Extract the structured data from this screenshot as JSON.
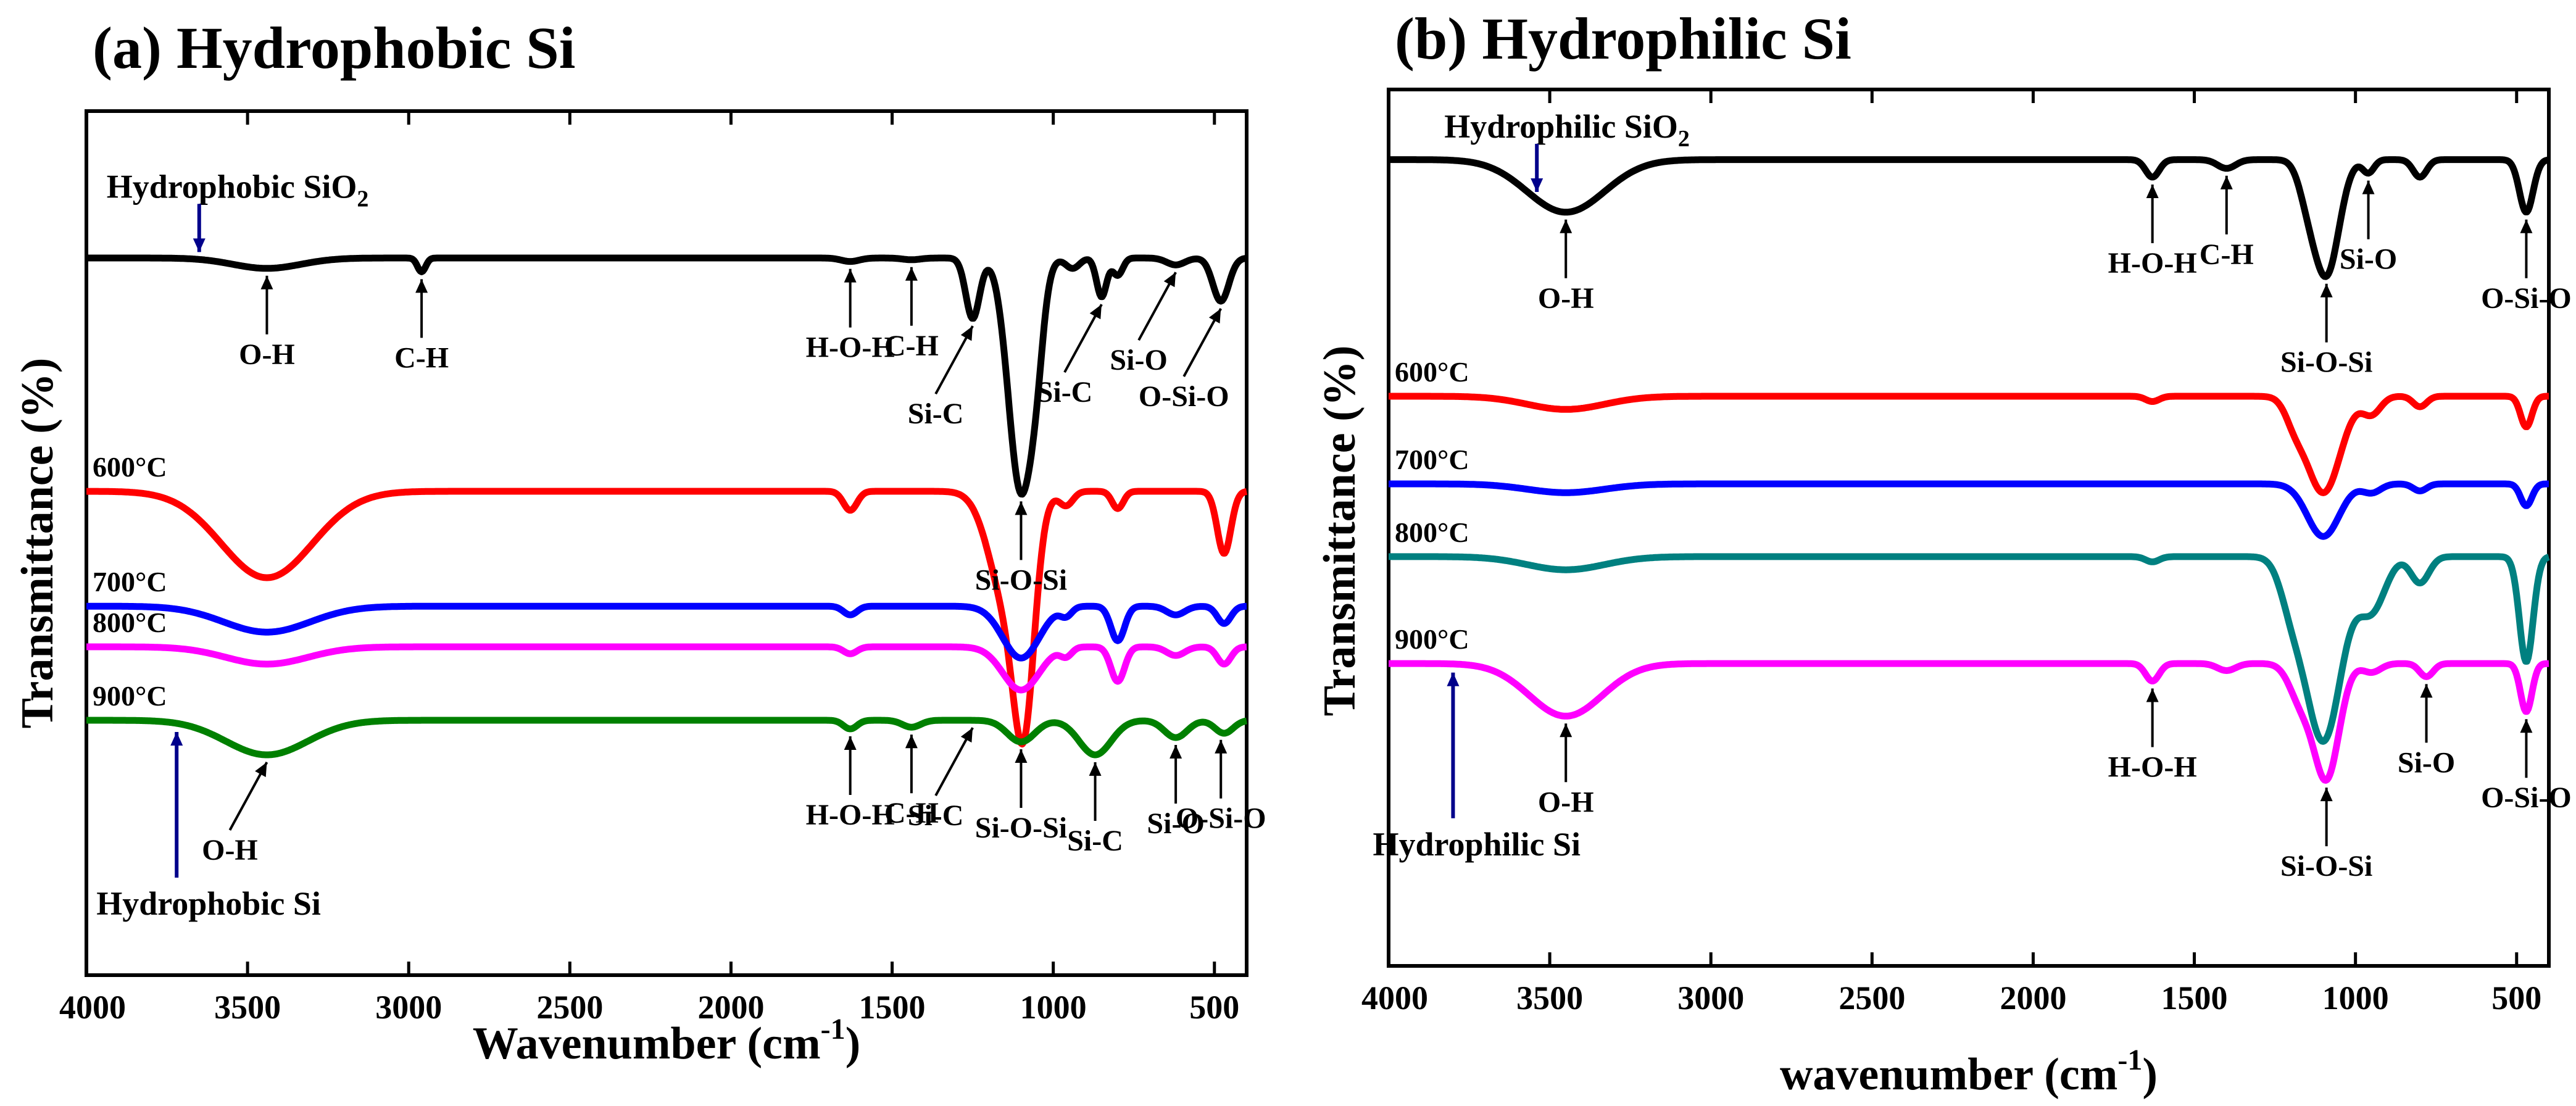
{
  "chart_data": [
    {
      "type": "line",
      "id": "a",
      "title": "(a) Hydrophobic Si",
      "xlabel": "Wavenumber (cm",
      "xlabel_sup": "-1",
      "xlabel_end": ")",
      "ylabel": "Transmittance (%)",
      "xlim": [
        4000,
        400
      ],
      "xticks": [
        4000,
        3500,
        3000,
        2500,
        2000,
        1500,
        1000,
        500
      ],
      "series": [
        {
          "name": "Hydrophobic SiO2",
          "label": "",
          "color": "#000000",
          "baseline": 0.17,
          "dips": [
            [
              3440,
              0.012,
              150
            ],
            [
              2960,
              0.016,
              18
            ],
            [
              1630,
              0.004,
              40
            ],
            [
              1440,
              0.002,
              40
            ],
            [
              1250,
              0.07,
              30
            ],
            [
              1100,
              0.27,
              55
            ],
            [
              1050,
              0.05,
              30
            ],
            [
              940,
              0.012,
              30
            ],
            [
              850,
              0.045,
              22
            ],
            [
              800,
              0.02,
              22
            ],
            [
              620,
              0.008,
              40
            ],
            [
              480,
              0.05,
              35
            ]
          ]
        },
        {
          "name": "600°C",
          "label": "600°C",
          "color": "#ff0000",
          "baseline": 0.44,
          "dips": [
            [
              3440,
              0.1,
              200
            ],
            [
              1630,
              0.022,
              30
            ],
            [
              1140,
              0.13,
              80
            ],
            [
              1090,
              0.2,
              45
            ],
            [
              960,
              0.016,
              30
            ],
            [
              800,
              0.02,
              25
            ],
            [
              470,
              0.072,
              30
            ]
          ]
        },
        {
          "name": "700°C",
          "label": "700°C",
          "color": "#0000ff",
          "baseline": 0.573,
          "dips": [
            [
              3440,
              0.03,
              190
            ],
            [
              1630,
              0.01,
              30
            ],
            [
              1100,
              0.06,
              80
            ],
            [
              960,
              0.01,
              25
            ],
            [
              800,
              0.04,
              30
            ],
            [
              620,
              0.01,
              40
            ],
            [
              470,
              0.02,
              30
            ]
          ]
        },
        {
          "name": "800°C",
          "label": "800°C",
          "color": "#ff00ff",
          "baseline": 0.62,
          "dips": [
            [
              3440,
              0.02,
              180
            ],
            [
              1630,
              0.008,
              30
            ],
            [
              1100,
              0.05,
              80
            ],
            [
              960,
              0.01,
              25
            ],
            [
              800,
              0.04,
              30
            ],
            [
              620,
              0.01,
              40
            ],
            [
              470,
              0.02,
              30
            ]
          ]
        },
        {
          "name": "Hydrophobic Si",
          "label": "900°C",
          "color": "#008000",
          "baseline": 0.705,
          "dips": [
            [
              3440,
              0.04,
              180
            ],
            [
              1630,
              0.01,
              30
            ],
            [
              1440,
              0.008,
              40
            ],
            [
              1100,
              0.025,
              60
            ],
            [
              870,
              0.04,
              70
            ],
            [
              620,
              0.02,
              50
            ],
            [
              470,
              0.015,
              40
            ]
          ]
        }
      ],
      "annotations": [
        {
          "text": "O-H",
          "x": 3440,
          "series": 0,
          "dir": "up"
        },
        {
          "text": "C-H",
          "x": 2960,
          "series": 0,
          "dir": "up"
        },
        {
          "text": "H-O-H",
          "x": 1630,
          "series": 0,
          "dir": "up"
        },
        {
          "text": "C-H",
          "x": 1440,
          "series": 0,
          "dir": "up"
        },
        {
          "text": "Si-C",
          "x": 1250,
          "series": 0,
          "dir": "diag"
        },
        {
          "text": "Si-O-Si",
          "x": 1100,
          "series": 0,
          "dir": "up"
        },
        {
          "text": "Si-C",
          "x": 850,
          "series": 0,
          "dir": "diag"
        },
        {
          "text": "Si-O",
          "x": 620,
          "series": 0,
          "dir": "diag"
        },
        {
          "text": "O-Si-O",
          "x": 480,
          "series": 0,
          "dir": "diag"
        },
        {
          "text": "O-H",
          "x": 3440,
          "series": 4,
          "dir": "diag"
        },
        {
          "text": "H-O-H",
          "x": 1630,
          "series": 4,
          "dir": "up"
        },
        {
          "text": "C-H",
          "x": 1440,
          "series": 4,
          "dir": "up"
        },
        {
          "text": "Si-C",
          "x": 1250,
          "series": 4,
          "dir": "diag"
        },
        {
          "text": "Si-O-Si",
          "x": 1100,
          "series": 4,
          "dir": "up"
        },
        {
          "text": "Si-C",
          "x": 870,
          "series": 4,
          "dir": "up"
        },
        {
          "text": "Si-O",
          "x": 620,
          "series": 4,
          "dir": "up"
        },
        {
          "text": "O-Si-O",
          "x": 480,
          "series": 4,
          "dir": "up"
        }
      ],
      "sample_labels": [
        {
          "text": "Hydrophobic SiO",
          "sub": "2",
          "x": 3650,
          "series": 0,
          "pos": "top"
        },
        {
          "text": "Hydrophobic Si",
          "sub": "",
          "x": 3720,
          "series": 4,
          "pos": "bottom"
        }
      ]
    },
    {
      "type": "line",
      "id": "b",
      "title": "(b) Hydrophilic Si",
      "xlabel": "wavenumber (cm",
      "xlabel_sup": "-1",
      "xlabel_end": ")",
      "ylabel": "Transmittance (%)",
      "xlim": [
        4000,
        400
      ],
      "xticks": [
        4000,
        3500,
        3000,
        2500,
        2000,
        1500,
        1000,
        500
      ],
      "series": [
        {
          "name": "Hydrophilic SiO2",
          "label": "",
          "color": "#000000",
          "baseline": 0.08,
          "dips": [
            [
              3450,
              0.06,
              170
            ],
            [
              1630,
              0.02,
              30
            ],
            [
              1400,
              0.01,
              40
            ],
            [
              1090,
              0.13,
              55
            ],
            [
              1150,
              0.03,
              40
            ],
            [
              960,
              0.015,
              25
            ],
            [
              800,
              0.02,
              30
            ],
            [
              470,
              0.06,
              30
            ]
          ]
        },
        {
          "name": "600°C",
          "label": "600°C",
          "color": "#ff0000",
          "baseline": 0.35,
          "dips": [
            [
              3450,
              0.015,
              170
            ],
            [
              1630,
              0.006,
              30
            ],
            [
              1100,
              0.11,
              75
            ],
            [
              1190,
              0.02,
              40
            ],
            [
              950,
              0.02,
              40
            ],
            [
              800,
              0.012,
              30
            ],
            [
              470,
              0.035,
              25
            ]
          ]
        },
        {
          "name": "700°C",
          "label": "700°C",
          "color": "#0000ff",
          "baseline": 0.45,
          "dips": [
            [
              3450,
              0.01,
              170
            ],
            [
              1100,
              0.06,
              70
            ],
            [
              950,
              0.01,
              40
            ],
            [
              800,
              0.008,
              30
            ],
            [
              470,
              0.025,
              25
            ]
          ]
        },
        {
          "name": "800°C",
          "label": "800°C",
          "color": "#008080",
          "baseline": 0.533,
          "dips": [
            [
              3450,
              0.015,
              170
            ],
            [
              1630,
              0.006,
              30
            ],
            [
              1100,
              0.21,
              80
            ],
            [
              1200,
              0.04,
              50
            ],
            [
              950,
              0.06,
              60
            ],
            [
              800,
              0.03,
              40
            ],
            [
              470,
              0.12,
              30
            ]
          ]
        },
        {
          "name": "Hydrophilic Si",
          "label": "900°C",
          "color": "#ff00ff",
          "baseline": 0.655,
          "dips": [
            [
              3450,
              0.06,
              160
            ],
            [
              1630,
              0.02,
              30
            ],
            [
              1400,
              0.008,
              40
            ],
            [
              1090,
              0.13,
              55
            ],
            [
              1170,
              0.04,
              50
            ],
            [
              950,
              0.01,
              40
            ],
            [
              780,
              0.015,
              30
            ],
            [
              470,
              0.055,
              25
            ]
          ]
        }
      ],
      "annotations": [
        {
          "text": "O-H",
          "x": 3450,
          "series": 0,
          "dir": "up"
        },
        {
          "text": "H-O-H",
          "x": 1630,
          "series": 0,
          "dir": "up"
        },
        {
          "text": "C-H",
          "x": 1400,
          "series": 0,
          "dir": "up"
        },
        {
          "text": "Si-O-Si",
          "x": 1090,
          "series": 0,
          "dir": "up"
        },
        {
          "text": "Si-O",
          "x": 960,
          "series": 0,
          "dir": "up"
        },
        {
          "text": "O-Si-O",
          "x": 470,
          "series": 0,
          "dir": "up"
        },
        {
          "text": "O-H",
          "x": 3450,
          "series": 4,
          "dir": "up"
        },
        {
          "text": "H-O-H",
          "x": 1630,
          "series": 4,
          "dir": "up"
        },
        {
          "text": "Si-O-Si",
          "x": 1090,
          "series": 4,
          "dir": "up"
        },
        {
          "text": "Si-O",
          "x": 780,
          "series": 4,
          "dir": "up"
        },
        {
          "text": "O-Si-O",
          "x": 470,
          "series": 4,
          "dir": "up"
        }
      ],
      "sample_labels": [
        {
          "text": "Hydrophilic SiO",
          "sub": "2",
          "x": 3540,
          "series": 0,
          "pos": "top"
        },
        {
          "text": "Hydrophilic Si",
          "sub": "",
          "x": 3800,
          "series": 4,
          "pos": "bottom"
        }
      ]
    }
  ]
}
